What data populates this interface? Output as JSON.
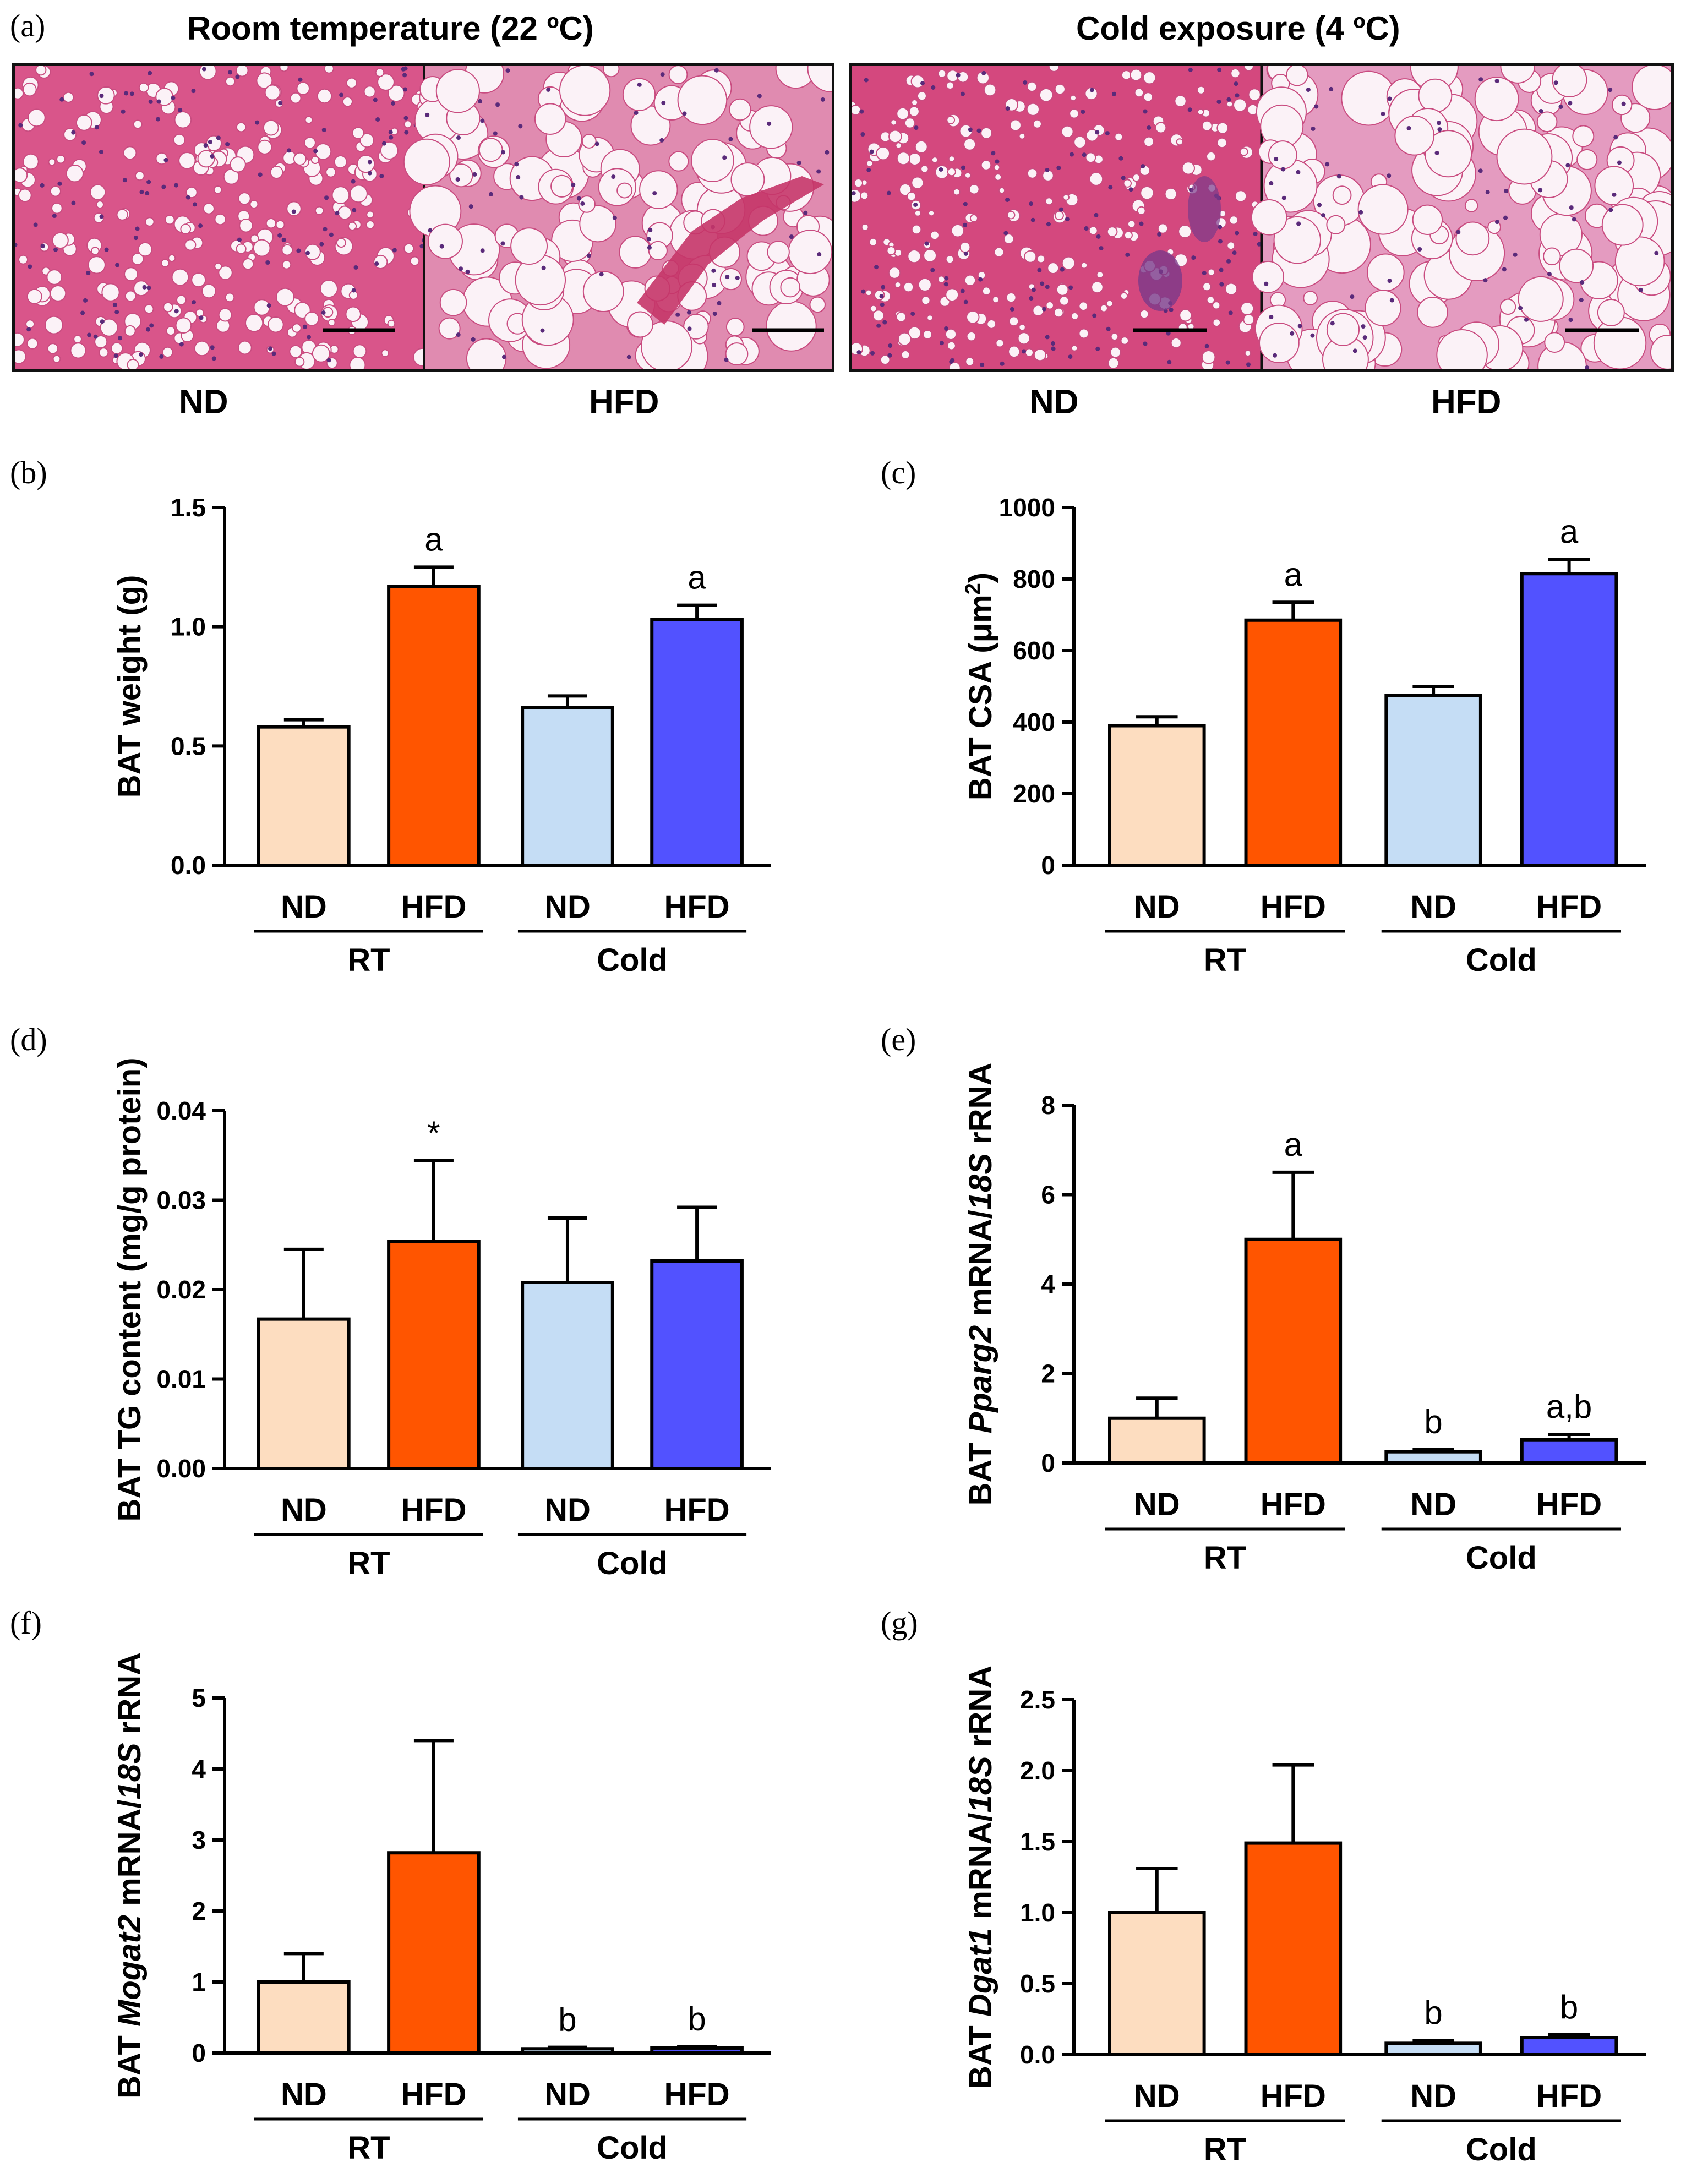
{
  "panel_a": {
    "letter": "(a)",
    "left_condition": "Room temperature (22 ºC)",
    "right_condition": "Cold exposure (4 ºC)",
    "images": [
      {
        "diet": "ND",
        "condition": "Room temperature"
      },
      {
        "diet": "HFD",
        "condition": "Room temperature"
      },
      {
        "diet": "ND",
        "condition": "Cold exposure"
      },
      {
        "diet": "HFD",
        "condition": "Cold exposure"
      }
    ]
  },
  "colors": {
    "rt_nd": "#FDDDC0",
    "rt_hfd": "#FF5500",
    "cold_nd": "#C5DDF5",
    "cold_hfd": "#5252FF",
    "stain_pink": "#D9558A",
    "stain_nuclei": "#5A2A7A"
  },
  "chart_data": [
    {
      "id": "b",
      "letter": "(b)",
      "type": "bar",
      "ylabel_parts": [
        {
          "text": "BAT weight (g)"
        }
      ],
      "ylim": [
        0,
        1.5
      ],
      "yticks": [
        "0.0",
        "0.5",
        "1.0",
        "1.5"
      ],
      "categories": [
        "ND",
        "HFD",
        "ND",
        "HFD"
      ],
      "groups": [
        "RT",
        "Cold"
      ],
      "values": [
        0.58,
        1.17,
        0.66,
        1.03
      ],
      "errors": [
        0.03,
        0.08,
        0.05,
        0.06
      ],
      "significance": [
        "",
        "a",
        "",
        "a"
      ]
    },
    {
      "id": "c",
      "letter": "(c)",
      "type": "bar",
      "ylabel_parts": [
        {
          "text": "BAT CSA ("
        },
        {
          "text": "μ"
        },
        {
          "text": "m"
        },
        {
          "text": "2",
          "sup": true
        },
        {
          "text": ")"
        }
      ],
      "ylim": [
        0,
        1000
      ],
      "yticks": [
        "0",
        "200",
        "400",
        "600",
        "800",
        "1000"
      ],
      "categories": [
        "ND",
        "HFD",
        "ND",
        "HFD"
      ],
      "groups": [
        "RT",
        "Cold"
      ],
      "values": [
        390,
        685,
        475,
        815
      ],
      "errors": [
        25,
        50,
        25,
        40
      ],
      "significance": [
        "",
        "a",
        "",
        "a"
      ]
    },
    {
      "id": "d",
      "letter": "(d)",
      "type": "bar",
      "ylabel_parts": [
        {
          "text": "BAT TG content (mg/g protein)"
        }
      ],
      "ylim": [
        0,
        0.04
      ],
      "yticks": [
        "0.00",
        "0.01",
        "0.02",
        "0.03",
        "0.04"
      ],
      "categories": [
        "ND",
        "HFD",
        "ND",
        "HFD"
      ],
      "groups": [
        "RT",
        "Cold"
      ],
      "values": [
        0.0167,
        0.0254,
        0.0208,
        0.0232
      ],
      "errors": [
        0.0078,
        0.009,
        0.0072,
        0.006
      ],
      "significance": [
        "",
        "*",
        "",
        ""
      ]
    },
    {
      "id": "e",
      "letter": "(e)",
      "type": "bar",
      "ylabel_parts": [
        {
          "text": "BAT "
        },
        {
          "text": "Pparg2",
          "italic": true
        },
        {
          "text": " mRNA/"
        },
        {
          "text": "18S",
          "italic": true
        },
        {
          "text": " rRNA"
        }
      ],
      "ylim": [
        0,
        8
      ],
      "yticks": [
        "0",
        "2",
        "4",
        "6",
        "8"
      ],
      "categories": [
        "ND",
        "HFD",
        "ND",
        "HFD"
      ],
      "groups": [
        "RT",
        "Cold"
      ],
      "values": [
        1.0,
        5.0,
        0.25,
        0.52
      ],
      "errors": [
        0.45,
        1.5,
        0.05,
        0.12
      ],
      "significance": [
        "",
        "a",
        "b",
        "a,b"
      ]
    },
    {
      "id": "f",
      "letter": "(f)",
      "type": "bar",
      "ylabel_parts": [
        {
          "text": "BAT "
        },
        {
          "text": "Mogat2",
          "italic": true
        },
        {
          "text": " mRNA/"
        },
        {
          "text": "18S",
          "italic": true
        },
        {
          "text": " rRNA"
        }
      ],
      "ylim": [
        0,
        5
      ],
      "yticks": [
        "0",
        "1",
        "2",
        "3",
        "4",
        "5"
      ],
      "categories": [
        "ND",
        "HFD",
        "ND",
        "HFD"
      ],
      "groups": [
        "RT",
        "Cold"
      ],
      "values": [
        1.0,
        2.82,
        0.06,
        0.07
      ],
      "errors": [
        0.4,
        1.58,
        0.02,
        0.02
      ],
      "significance": [
        "",
        "",
        "b",
        "b"
      ]
    },
    {
      "id": "g",
      "letter": "(g)",
      "type": "bar",
      "ylabel_parts": [
        {
          "text": "BAT "
        },
        {
          "text": "Dgat1",
          "italic": true
        },
        {
          "text": " mRNA/"
        },
        {
          "text": "18S",
          "italic": true
        },
        {
          "text": " rRNA"
        }
      ],
      "ylim": [
        0,
        2.5
      ],
      "yticks": [
        "0.0",
        "0.5",
        "1.0",
        "1.5",
        "2.0",
        "2.5"
      ],
      "categories": [
        "ND",
        "HFD",
        "ND",
        "HFD"
      ],
      "groups": [
        "RT",
        "Cold"
      ],
      "values": [
        1.0,
        1.49,
        0.08,
        0.12
      ],
      "errors": [
        0.31,
        0.55,
        0.02,
        0.02
      ],
      "significance": [
        "",
        "",
        "b",
        "b"
      ]
    }
  ]
}
